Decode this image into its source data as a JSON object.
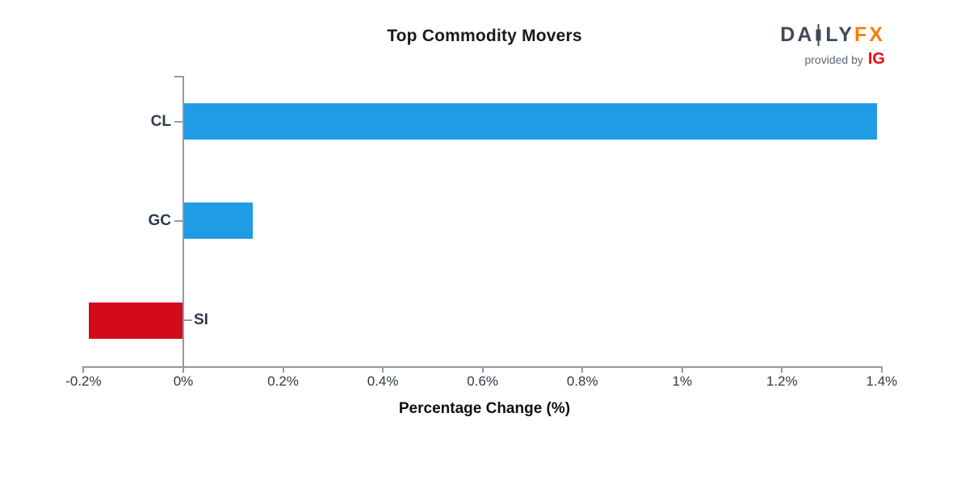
{
  "title": "Top Commodity Movers",
  "logo": {
    "part1": "DA",
    "part2": "LY",
    "part3": "FX",
    "tagline": "provided by",
    "ig": "IG",
    "slate_color": "#3e4a57",
    "fx_color": "#f67c05",
    "ig_color": "#e60a14"
  },
  "chart_data": {
    "type": "bar",
    "orientation": "horizontal",
    "title": "Top Commodity Movers",
    "xlabel": "Percentage Change (%)",
    "ylabel": "",
    "categories": [
      "CL",
      "GC",
      "SI"
    ],
    "values": [
      1.39,
      0.14,
      -0.19
    ],
    "xlim": [
      -0.2,
      1.4
    ],
    "xticks": [
      "-0.2%",
      "0%",
      "0.2%",
      "0.4%",
      "0.6%",
      "0.8%",
      "1%",
      "1.2%",
      "1.4%"
    ],
    "grid": false,
    "legend": false,
    "colors": {
      "positive": "#1e9ce4",
      "negative": "#d20a1c",
      "axis": "#999999",
      "tick_text": "#2e3a48"
    }
  }
}
